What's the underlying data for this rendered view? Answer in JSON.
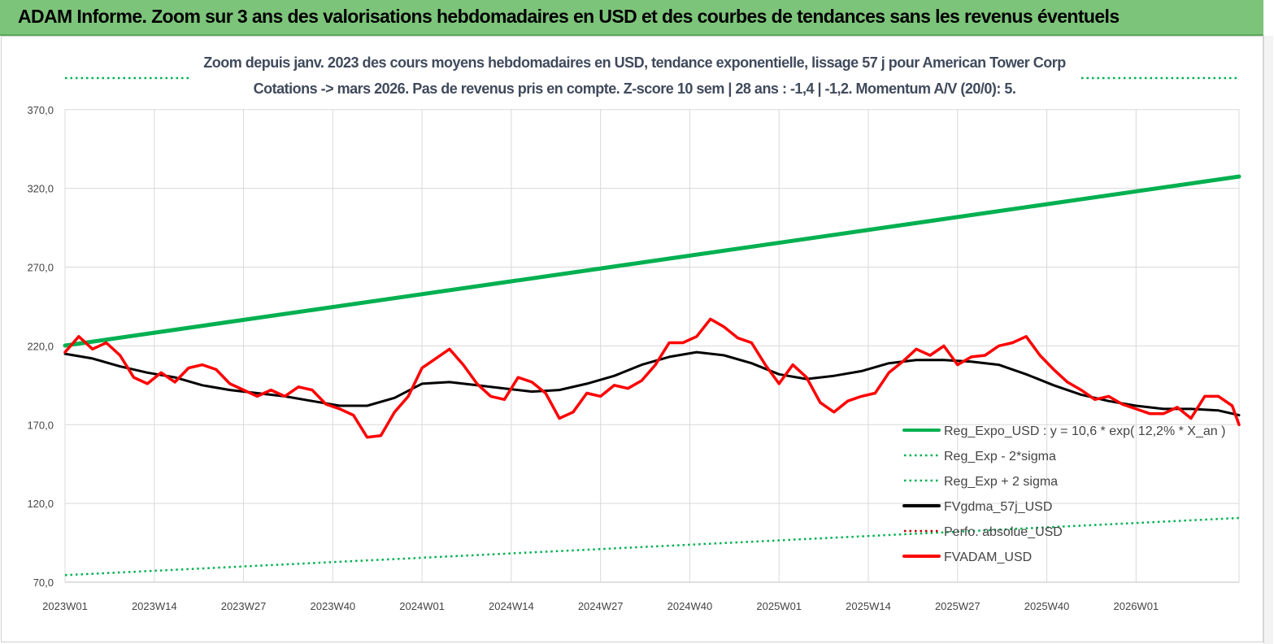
{
  "header": {
    "title": "ADAM Informe. Zoom sur 3 ans des valorisations hebdomadaires en USD et des courbes de tendances sans les revenus éventuels"
  },
  "chart_data": {
    "type": "line",
    "title": "Zoom depuis janv. 2023 des cours moyens hebdomadaires en USD, tendance exponentielle, lissage 57 j pour American Tower Corp",
    "subtitle": "Cotations -> mars 2026. Pas de revenus pris en compte. Z-score 10 sem | 28 ans : -1,4 | -1,2. Momentum A/V (20/0): 5.",
    "xlabel": "",
    "ylabel": "",
    "ylim": [
      70,
      390
    ],
    "yticks": [
      "70,0",
      "120,0",
      "170,0",
      "220,0",
      "270,0",
      "320,0",
      "370,0"
    ],
    "ytick_values": [
      70,
      120,
      170,
      220,
      270,
      320,
      370
    ],
    "xticks": [
      "2023W01",
      "2023W14",
      "2023W27",
      "2023W40",
      "2024W01",
      "2024W14",
      "2024W27",
      "2024W40",
      "2025W01",
      "2025W14",
      "2025W27",
      "2025W40",
      "2026W01"
    ],
    "xtick_positions": [
      0,
      13,
      26,
      39,
      52,
      65,
      78,
      91,
      104,
      117,
      130,
      143,
      156
    ],
    "x_max": 171,
    "grid": true,
    "legend_position": "bottom-right",
    "series": [
      {
        "name": "Reg_Expo_USD : y = 10,6 * exp( 12,2% * X_an )",
        "color": "#00b050",
        "style": "solid",
        "x": [
          0,
          171
        ],
        "values": [
          220.2,
          327.5
        ]
      },
      {
        "name": "Reg_Exp - 2*sigma",
        "color": "#00b050",
        "style": "dotted",
        "x": [
          0,
          171
        ],
        "values": [
          74.5,
          110.8
        ]
      },
      {
        "name": "Reg_Exp + 2 sigma",
        "color": "#00b050",
        "style": "dotted",
        "x": [
          0,
          171
        ],
        "values": [
          400.0,
          400.0
        ]
      },
      {
        "name": "FVgdma_57j_USD",
        "color": "#000000",
        "style": "solid",
        "x": [
          0,
          4,
          8,
          12,
          16,
          20,
          24,
          28,
          32,
          36,
          40,
          44,
          48,
          52,
          56,
          60,
          64,
          68,
          72,
          76,
          80,
          84,
          88,
          92,
          96,
          100,
          104,
          108,
          112,
          116,
          120,
          124,
          128,
          132,
          136,
          140,
          144,
          148,
          152,
          156,
          160,
          164,
          168,
          171
        ],
        "values": [
          215,
          212,
          207,
          203,
          200,
          195,
          192,
          190,
          188,
          185,
          182,
          182,
          187,
          196,
          197,
          195,
          193,
          191,
          192,
          196,
          201,
          208,
          213,
          216,
          214,
          209,
          202,
          199,
          201,
          204,
          209,
          211,
          211,
          210,
          208,
          202,
          195,
          189,
          185,
          182,
          180,
          180,
          179,
          176
        ]
      },
      {
        "name": "Perfo. absolue_USD",
        "color": "#c00000",
        "style": "dotted",
        "x": [],
        "values": []
      },
      {
        "name": "FVADAM_USD",
        "color": "#ff0000",
        "style": "solid",
        "x": [
          0,
          2,
          4,
          6,
          8,
          10,
          12,
          14,
          16,
          18,
          20,
          22,
          24,
          26,
          28,
          30,
          32,
          34,
          36,
          38,
          40,
          42,
          44,
          46,
          48,
          50,
          52,
          54,
          56,
          58,
          60,
          62,
          64,
          66,
          68,
          70,
          72,
          74,
          76,
          78,
          80,
          82,
          84,
          86,
          88,
          90,
          92,
          94,
          96,
          98,
          100,
          102,
          104,
          106,
          108,
          110,
          112,
          114,
          116,
          118,
          120,
          122,
          124,
          126,
          128,
          130,
          132,
          134,
          136,
          138,
          140,
          142,
          144,
          146,
          148,
          150,
          152,
          154,
          156,
          158,
          160,
          162,
          164,
          166,
          168,
          170,
          171
        ],
        "values": [
          216,
          226,
          218,
          222,
          214,
          200,
          196,
          203,
          197,
          206,
          208,
          205,
          196,
          192,
          188,
          192,
          188,
          194,
          192,
          183,
          180,
          176,
          162,
          163,
          178,
          188,
          206,
          212,
          218,
          208,
          196,
          188,
          186,
          200,
          197,
          190,
          174,
          178,
          190,
          188,
          195,
          193,
          198,
          208,
          222,
          222,
          226,
          237,
          232,
          225,
          222,
          208,
          196,
          208,
          200,
          184,
          178,
          185,
          188,
          190,
          203,
          210,
          218,
          214,
          220,
          208,
          213,
          214,
          220,
          222,
          226,
          214,
          205,
          197,
          192,
          186,
          188,
          183,
          180,
          177,
          177,
          181,
          174,
          188,
          188,
          182,
          170
        ]
      }
    ]
  }
}
